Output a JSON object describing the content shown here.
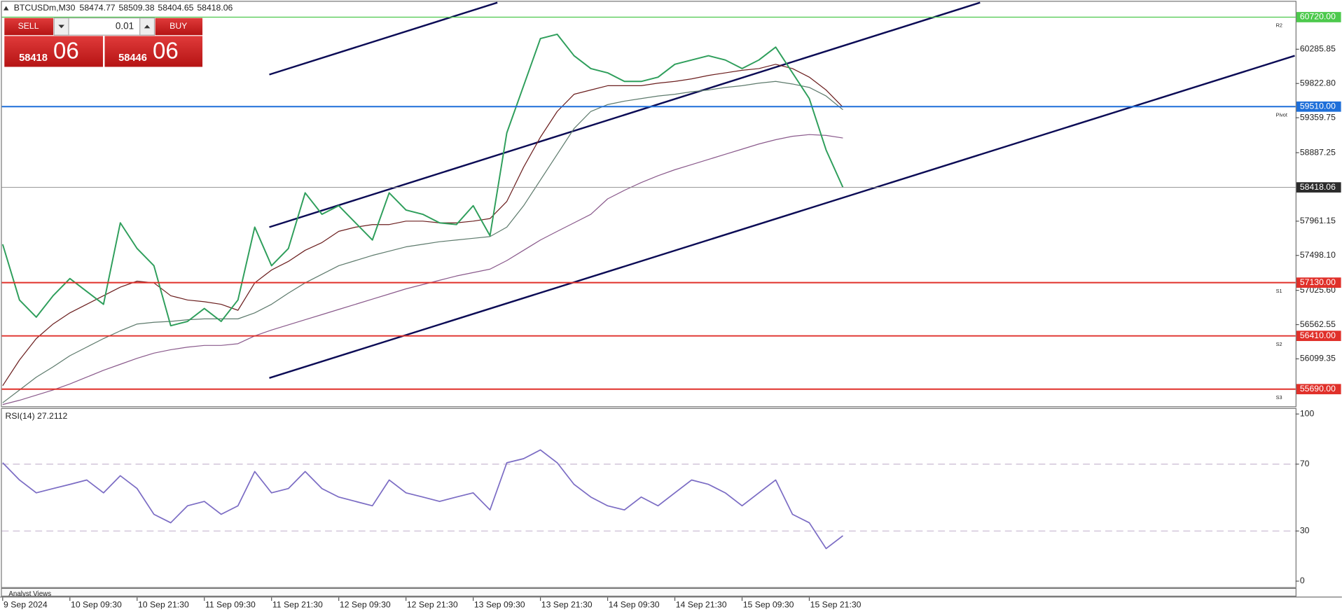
{
  "header": {
    "symbol": "BTCUSDm,M30",
    "ohlc": [
      "58474.77",
      "58509.38",
      "58404.65",
      "58418.06"
    ]
  },
  "trade_panel": {
    "sell_label": "SELL",
    "buy_label": "BUY",
    "lot": "0.01",
    "sell_price_main": "58418",
    "sell_price_pips": "06",
    "buy_price_main": "58446",
    "buy_price_pips": "06"
  },
  "footer_tab": "Analyst Views",
  "chart_data": [
    {
      "type": "line",
      "categories": [
        "9 Sep 2024",
        null,
        null,
        null,
        "10 Sep 09:30",
        null,
        null,
        null,
        "10 Sep 21:30",
        null,
        null,
        null,
        "11 Sep 09:30",
        null,
        null,
        null,
        "11 Sep 21:30",
        null,
        null,
        null,
        "12 Sep 09:30",
        null,
        null,
        null,
        "12 Sep 21:30",
        null,
        null,
        null,
        "13 Sep 09:30",
        null,
        null,
        null,
        "13 Sep 21:30",
        null,
        null,
        null,
        "14 Sep 09:30",
        null,
        null,
        null,
        "14 Sep 21:30",
        null,
        null,
        null,
        "15 Sep 09:30",
        null,
        null,
        null,
        "15 Sep 21:30",
        null,
        null
      ],
      "series": [
        {
          "color": "#2e9e5b",
          "values": [
            57649,
            56895,
            56663,
            56953,
            57185,
            57011,
            56837,
            57938,
            57591,
            57359,
            56548,
            56605,
            56780,
            56605,
            56895,
            57880,
            57359,
            57591,
            58344,
            58054,
            58170,
            57938,
            57707,
            58344,
            58112,
            58054,
            57938,
            57915,
            58170,
            57765,
            59155,
            59793,
            60430,
            60488,
            60198,
            60024,
            59967,
            59851,
            59851,
            59909,
            60083,
            60140,
            60198,
            60140,
            60024,
            60140,
            60314,
            59967,
            59619,
            58924,
            58418.06
          ]
        },
        {
          "color": "#6b1e1e",
          "values": [
            55736,
            56084,
            56374,
            56571,
            56721,
            56837,
            56953,
            57069,
            57150,
            57127,
            56953,
            56895,
            56872,
            56837,
            56756,
            57127,
            57301,
            57417,
            57568,
            57672,
            57823,
            57880,
            57915,
            57915,
            57962,
            57962,
            57938,
            57938,
            57962,
            57996,
            58228,
            58692,
            59097,
            59445,
            59677,
            59735,
            59793,
            59793,
            59793,
            59828,
            59851,
            59886,
            59932,
            59967,
            60001,
            60025,
            60083,
            60025,
            59909,
            59735,
            59503
          ]
        },
        {
          "color": "#5d7a6c",
          "values": [
            55505,
            55678,
            55852,
            55991,
            56142,
            56258,
            56374,
            56478,
            56571,
            56594,
            56606,
            56629,
            56640,
            56640,
            56640,
            56721,
            56837,
            56988,
            57127,
            57243,
            57359,
            57428,
            57498,
            57556,
            57614,
            57649,
            57683,
            57707,
            57730,
            57753,
            57880,
            58170,
            58518,
            58866,
            59213,
            59445,
            59538,
            59584,
            59619,
            59654,
            59677,
            59712,
            59735,
            59770,
            59793,
            59828,
            59851,
            59816,
            59770,
            59654,
            59468
          ]
        },
        {
          "color": "#8a5a8c",
          "values": [
            55481,
            55539,
            55609,
            55678,
            55760,
            55852,
            55945,
            56026,
            56107,
            56177,
            56223,
            56258,
            56281,
            56281,
            56304,
            56409,
            56490,
            56559,
            56629,
            56698,
            56768,
            56837,
            56907,
            56976,
            57046,
            57104,
            57162,
            57220,
            57266,
            57313,
            57428,
            57568,
            57707,
            57823,
            57938,
            58054,
            58263,
            58379,
            58483,
            58576,
            58657,
            58727,
            58796,
            58866,
            58935,
            59005,
            59063,
            59109,
            59132,
            59121,
            59086
          ]
        }
      ],
      "ylim": [
        55458,
        60917
      ],
      "yticks": [
        56099.35,
        56562.55,
        {
          "value": 57025.6,
          "label": "57025.60"
        },
        {
          "value": 57498.1,
          "label": "57498.10"
        },
        57961.15,
        58887.25,
        59359.75,
        {
          "value": 59822.8,
          "label": "59822.80"
        },
        60285.85
      ],
      "levels": [
        {
          "name": "R2",
          "value": 60720,
          "label": "60720.00",
          "color": "#4cc94c"
        },
        {
          "name": "Pivot",
          "value": 59510,
          "label": "59510.00",
          "color": "#1e6fd9"
        },
        {
          "name": "S1",
          "value": 57130,
          "label": "57130.00",
          "color": "#e0302a"
        },
        {
          "name": "S2",
          "value": 56410,
          "label": "56410.00",
          "color": "#e0302a"
        },
        {
          "name": "S3",
          "value": 55690,
          "label": "55690.00",
          "color": "#e0302a"
        }
      ],
      "last_price": 58418.06
    },
    {
      "type": "line",
      "title": "RSI(14) 27.2112",
      "color": "#7b6cc4",
      "values": [
        70.8,
        60.5,
        52.8,
        55.4,
        57.9,
        60.5,
        52.8,
        63.1,
        55.4,
        40,
        34.9,
        45.1,
        47.7,
        40,
        45.1,
        65.6,
        52.8,
        55.4,
        65.6,
        55.4,
        50.3,
        47.7,
        45.1,
        60.5,
        52.8,
        50.3,
        47.7,
        50.3,
        52.8,
        42.6,
        70.8,
        73.3,
        78.5,
        70.8,
        57.9,
        50.3,
        45.1,
        42.6,
        50.3,
        45.1,
        52.8,
        60.5,
        57.9,
        52.8,
        45.1,
        52.8,
        60.5,
        40,
        34.9,
        19.5,
        27.2
      ],
      "ylim": [
        0,
        100
      ],
      "yticks": [
        0,
        30,
        70,
        100
      ],
      "levels": [
        70,
        30
      ]
    }
  ]
}
